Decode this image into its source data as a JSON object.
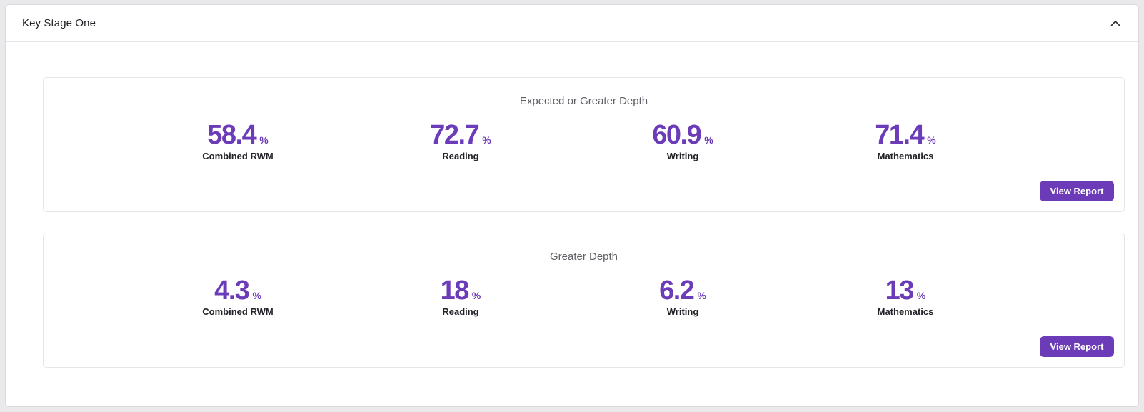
{
  "panel": {
    "title": "Key Stage One",
    "collapse_icon": "chevron-up-icon"
  },
  "colors": {
    "accent": "#6b3bb8",
    "panel_border": "#d9d9de",
    "label_text": "#222228"
  },
  "cards": [
    {
      "title": "Expected or Greater Depth",
      "stats": [
        {
          "value": "58.4",
          "unit": "%",
          "label": "Combined RWM"
        },
        {
          "value": "72.7",
          "unit": "%",
          "label": "Reading"
        },
        {
          "value": "60.9",
          "unit": "%",
          "label": "Writing"
        },
        {
          "value": "71.4",
          "unit": "%",
          "label": "Mathematics"
        }
      ],
      "button_label": "View Report"
    },
    {
      "title": "Greater Depth",
      "stats": [
        {
          "value": "4.3",
          "unit": "%",
          "label": "Combined RWM"
        },
        {
          "value": "18",
          "unit": "%",
          "label": "Reading"
        },
        {
          "value": "6.2",
          "unit": "%",
          "label": "Writing"
        },
        {
          "value": "13",
          "unit": "%",
          "label": "Mathematics"
        }
      ],
      "button_label": "View Report"
    }
  ]
}
